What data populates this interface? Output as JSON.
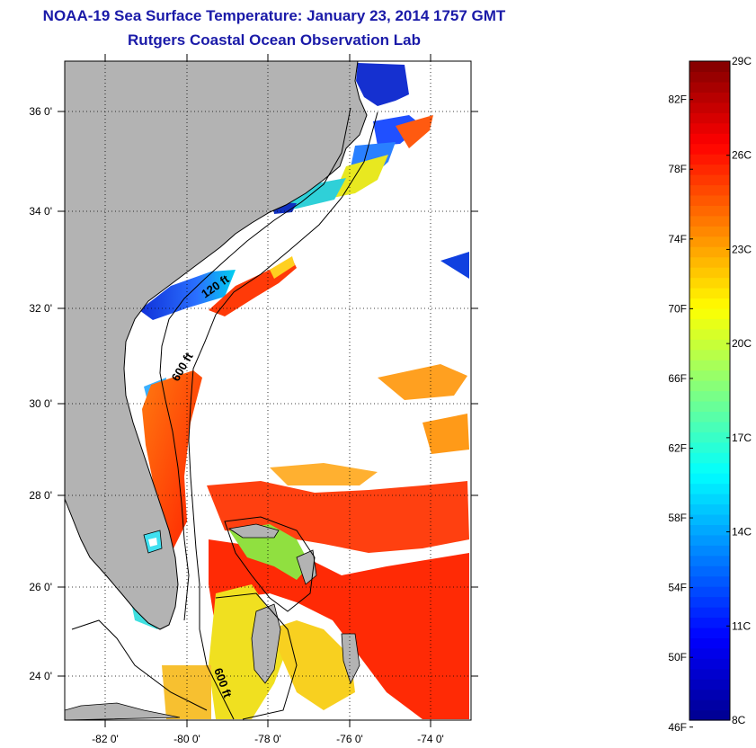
{
  "header": {
    "title": "NOAA-19 Sea Surface Temperature:  January 23, 2014 1757 GMT",
    "subtitle": "Rutgers Coastal Ocean Observation Lab"
  },
  "map": {
    "lon_labels": [
      "-82 0'",
      "-80 0'",
      "-78 0'",
      "-76 0'",
      "-74 0'"
    ],
    "lat_labels": [
      "36 0'",
      "34 0'",
      "32 0'",
      "30 0'",
      "28 0'",
      "26 0'",
      "24 0'"
    ],
    "contour_labels": [
      "120 ft",
      "600 ft",
      "600 ft"
    ],
    "land_color": "#b3b3b3",
    "no_data_color": "#ffffff"
  },
  "colorbar": {
    "celsius_labels": [
      "29C",
      "26C",
      "23C",
      "20C",
      "17C",
      "14C",
      "11C",
      "8C"
    ],
    "fahrenheit_labels": [
      "82F",
      "78F",
      "74F",
      "70F",
      "66F",
      "62F",
      "58F",
      "54F",
      "50F",
      "46F"
    ],
    "range_c": [
      8,
      29
    ],
    "colors": [
      "#00008f",
      "#0000ff",
      "#0080ff",
      "#00ffff",
      "#80ff80",
      "#ffff00",
      "#ff8000",
      "#ff0000",
      "#800000"
    ]
  }
}
